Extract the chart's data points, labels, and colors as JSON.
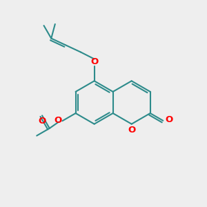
{
  "bg_color": "#eeeeee",
  "bond_color": "#2d8b8b",
  "oxygen_color": "#ff0000",
  "bond_width": 1.5,
  "fig_size": [
    3.0,
    3.0
  ],
  "dpi": 100,
  "xlim": [
    0,
    10
  ],
  "ylim": [
    0,
    10
  ]
}
